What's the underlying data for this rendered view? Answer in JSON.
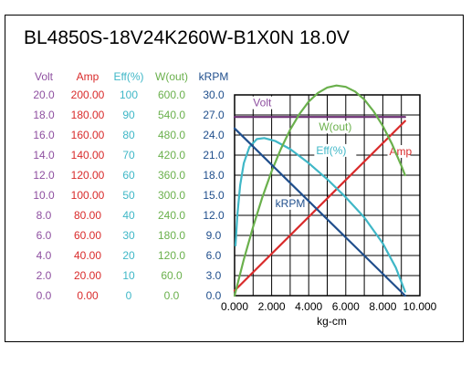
{
  "chart_data": {
    "type": "line",
    "title": "BL4850S-18V24K260W-B1X0N   18.0V",
    "xlabel": "kg-cm",
    "x_ticks": [
      "0.000",
      "2.000",
      "4.000",
      "6.000",
      "8.000",
      "10.000"
    ],
    "xlim": [
      0,
      10
    ],
    "grid": true,
    "y_axes": [
      {
        "name": "Volt",
        "color": "#8e4fa0",
        "ticks": [
          "20.0",
          "18.0",
          "16.0",
          "14.0",
          "12.0",
          "10.0",
          "8.0",
          "6.0",
          "4.0",
          "2.0",
          "0.0"
        ],
        "ylim": [
          0,
          20
        ]
      },
      {
        "name": "Amp",
        "color": "#d92b2b",
        "ticks": [
          "200.00",
          "180.00",
          "160.00",
          "140.00",
          "120.00",
          "100.00",
          "80.00",
          "60.00",
          "40.00",
          "20.00",
          "0.00"
        ],
        "ylim": [
          0,
          200
        ]
      },
      {
        "name": "Eff(%)",
        "color": "#3fb7c7",
        "ticks": [
          "100",
          "90",
          "80",
          "70",
          "60",
          "50",
          "40",
          "30",
          "20",
          "10",
          "0"
        ],
        "ylim": [
          0,
          100
        ]
      },
      {
        "name": "W(out)",
        "color": "#6ab04c",
        "ticks": [
          "600.0",
          "540.0",
          "480.0",
          "420.0",
          "360.0",
          "300.0",
          "240.0",
          "180.0",
          "120.0",
          "60.0",
          "0.0"
        ],
        "ylim": [
          0,
          600
        ]
      },
      {
        "name": "kRPM",
        "color": "#1f4e8c",
        "ticks": [
          "30.0",
          "27.0",
          "24.0",
          "21.0",
          "18.0",
          "15.0",
          "12.0",
          "9.0",
          "6.0",
          "3.0",
          "0.0"
        ],
        "ylim": [
          0,
          30
        ]
      }
    ],
    "series": [
      {
        "name": "Volt",
        "axis": 0,
        "color": "#6b2f73",
        "label_at": [
          1.0,
          18.85
        ],
        "x": [
          0,
          9.2
        ],
        "y": [
          17.8,
          17.8
        ]
      },
      {
        "name": "Amp",
        "axis": 1,
        "color": "#d92b2b",
        "label_at": [
          8.35,
          140
        ],
        "x": [
          0,
          9.2
        ],
        "y": [
          5,
          174
        ]
      },
      {
        "name": "Eff(%)",
        "axis": 2,
        "color": "#3fb7c7",
        "label_at": [
          4.4,
          70.5
        ],
        "x": [
          0.05,
          0.15,
          0.3,
          0.5,
          0.8,
          1.2,
          1.6,
          2.2,
          3.0,
          4.0,
          5.0,
          6.0,
          7.0,
          8.0,
          8.7,
          9.2
        ],
        "y": [
          25,
          40,
          55,
          66,
          74,
          78,
          78.5,
          77,
          73,
          66,
          58,
          49,
          39,
          26,
          14,
          2
        ]
      },
      {
        "name": "W(out)",
        "axis": 3,
        "color": "#6ab04c",
        "label_at": [
          4.55,
          493
        ],
        "x": [
          0,
          0.5,
          1.0,
          1.5,
          2.0,
          2.5,
          3.0,
          3.5,
          4.0,
          4.5,
          5.0,
          5.5,
          6.0,
          6.5,
          7.0,
          7.5,
          8.0,
          8.5,
          9.0,
          9.2
        ],
        "y": [
          0,
          108,
          206,
          294,
          372,
          439,
          496,
          543,
          580,
          606,
          622,
          628,
          624,
          610,
          586,
          551,
          507,
          453,
          388,
          360
        ]
      },
      {
        "name": "kRPM",
        "axis": 4,
        "color": "#1f4e8c",
        "label_at": [
          2.2,
          13.25
        ],
        "x": [
          0,
          9.2
        ],
        "y": [
          25.0,
          0
        ]
      }
    ]
  }
}
